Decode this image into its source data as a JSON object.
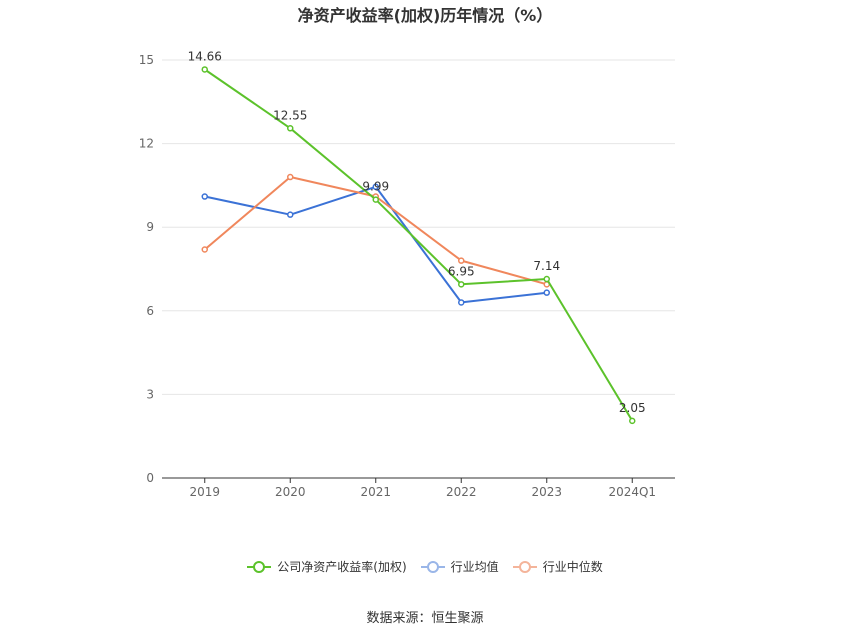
{
  "title": "净资产收益率(加权)历年情况（%）",
  "source": "数据来源：恒生聚源",
  "chart_data": {
    "type": "line",
    "title": "净资产收益率(加权)历年情况（%）",
    "categories": [
      "2019",
      "2020",
      "2021",
      "2022",
      "2023",
      "2024Q1"
    ],
    "ylim": [
      0,
      15
    ],
    "yticks": [
      0,
      3,
      6,
      9,
      12,
      15
    ],
    "grid": true,
    "legend_position": "bottom",
    "series": [
      {
        "name": "公司净资产收益率(加权)",
        "color": "#5cc22b",
        "values": [
          14.66,
          12.55,
          9.99,
          6.95,
          7.14,
          2.05
        ],
        "labels": [
          "14.66",
          "12.55",
          "9.99",
          "6.95",
          "7.14",
          "2.05"
        ]
      },
      {
        "name": "行业均值",
        "color": "#3b72d6",
        "values": [
          10.1,
          9.45,
          10.45,
          6.3,
          6.65,
          null
        ]
      },
      {
        "name": "行业中位数",
        "color": "#f0875c",
        "values": [
          8.2,
          10.8,
          10.1,
          7.8,
          6.95,
          null
        ]
      }
    ]
  }
}
